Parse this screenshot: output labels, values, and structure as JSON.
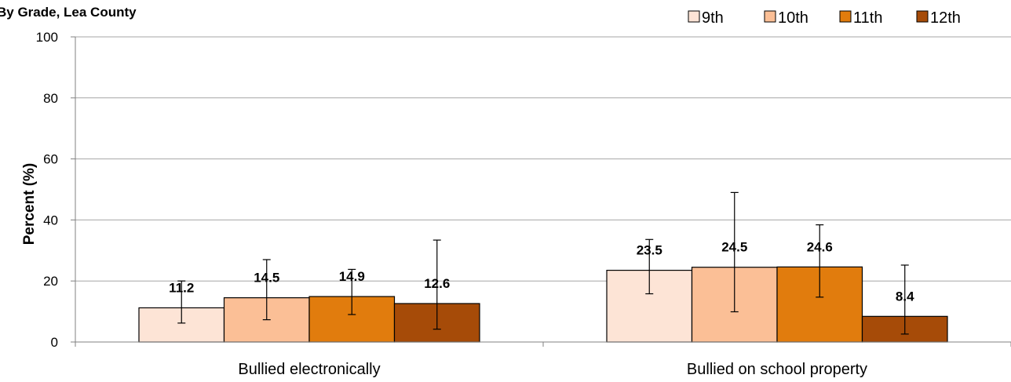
{
  "chart_data": {
    "type": "bar",
    "title": "By Grade, Lea County",
    "ylabel": "Percent (%)",
    "xlabel": "",
    "ylim": [
      0,
      100
    ],
    "yticks": [
      0,
      20,
      40,
      60,
      80,
      100
    ],
    "grid": true,
    "legend_position": "top-right",
    "categories": [
      "Bullied electronically",
      "Bullied on school property"
    ],
    "series": [
      {
        "name": "9th",
        "color": "#fde4d6",
        "values": [
          11.2,
          23.5
        ],
        "error_low": [
          6.2,
          15.8
        ],
        "error_high": [
          20.0,
          33.6
        ]
      },
      {
        "name": "10th",
        "color": "#fbbf96",
        "values": [
          14.5,
          24.5
        ],
        "error_low": [
          7.3,
          9.9
        ],
        "error_high": [
          27.0,
          49.0
        ]
      },
      {
        "name": "11th",
        "color": "#e17c0d",
        "values": [
          14.9,
          24.6
        ],
        "error_low": [
          9.0,
          14.7
        ],
        "error_high": [
          23.8,
          38.4
        ]
      },
      {
        "name": "12th",
        "color": "#a64b08",
        "values": [
          12.6,
          8.4
        ],
        "error_low": [
          4.2,
          2.6
        ],
        "error_high": [
          33.4,
          25.2
        ]
      }
    ]
  }
}
